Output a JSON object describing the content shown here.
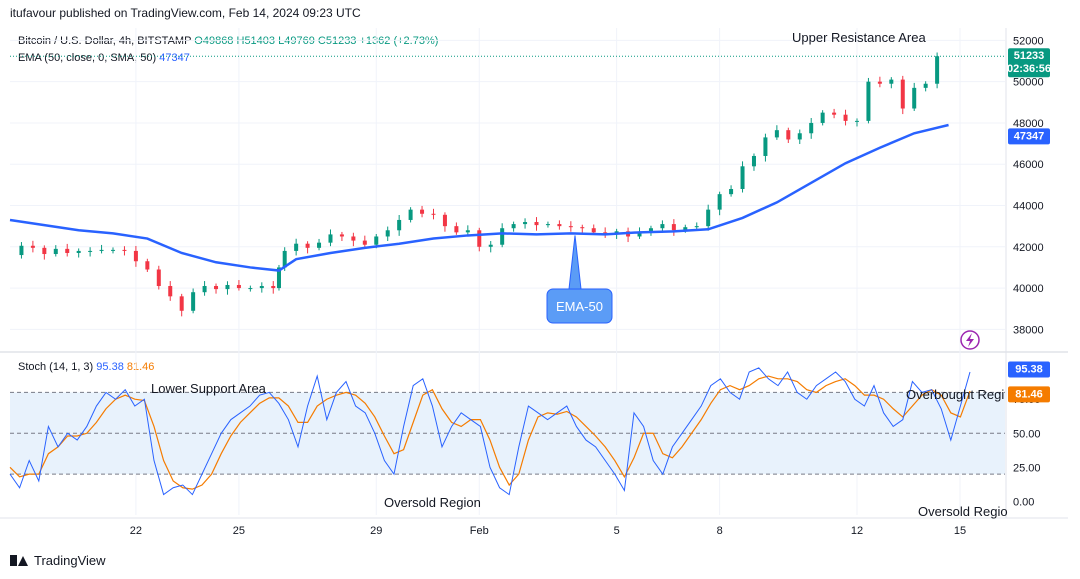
{
  "header": {
    "caption": "itufavour published on TradingView.com, Feb 14, 2024 09:23 UTC",
    "symbol_label": "Bitcoin / U.S. Dollar, 4h, BITSTAMP",
    "ohlc": {
      "o": "O49868",
      "h": "H51403",
      "l": "L49769",
      "c": "C51233",
      "chg": "+1362 (+2.73%)"
    },
    "ema_label": "EMA (50, close, 0, SMA, 50)",
    "ema_value": "47347"
  },
  "price_badge": {
    "price": "51233",
    "countdown": "02:36:56"
  },
  "ema_badge": "47347",
  "stoch": {
    "label": "Stoch (14, 1, 3)",
    "k": "95.38",
    "d": "81.46"
  },
  "annotations": {
    "upper": "Upper Resistance Area",
    "lower": "Lower Support Area",
    "oversold1": "Oversold Region",
    "oversold2": "Oversold Regio",
    "overbought": "Overbought Regi",
    "ema_callout": "EMA-50"
  },
  "brand": "TradingView",
  "colors": {
    "up": "#089981",
    "down": "#f23645",
    "ema": "#2962ff",
    "k": "#2962ff",
    "d": "#f57c00",
    "band": "#e8f2fc"
  },
  "chart_data": [
    {
      "type": "candlestick",
      "title": "",
      "y_ticks": [
        38000,
        40000,
        42000,
        44000,
        46000,
        48000,
        50000,
        52000
      ],
      "ylim": [
        37000,
        52600
      ],
      "x_ticks": [
        {
          "label": "22",
          "i": 22
        },
        {
          "label": "25",
          "i": 40
        },
        {
          "label": "29",
          "i": 64
        },
        {
          "label": "Feb",
          "i": 82
        },
        {
          "label": "5",
          "i": 106
        },
        {
          "label": "8",
          "i": 124
        },
        {
          "label": "12",
          "i": 148
        },
        {
          "label": "15",
          "i": 166
        }
      ],
      "series": [
        {
          "name": "EMA (50, close, 0, SMA, 50)",
          "points": [
            [
              0,
              43300
            ],
            [
              6,
              43050
            ],
            [
              12,
              42800
            ],
            [
              18,
              42650
            ],
            [
              24,
              42400
            ],
            [
              30,
              41700
            ],
            [
              36,
              41250
            ],
            [
              42,
              41000
            ],
            [
              47,
              40850
            ],
            [
              50,
              41400
            ],
            [
              56,
              41700
            ],
            [
              62,
              41950
            ],
            [
              68,
              42150
            ],
            [
              74,
              42400
            ],
            [
              80,
              42550
            ],
            [
              86,
              42650
            ],
            [
              92,
              42600
            ],
            [
              98,
              42650
            ],
            [
              104,
              42600
            ],
            [
              110,
              42700
            ],
            [
              116,
              42750
            ],
            [
              122,
              42850
            ],
            [
              128,
              43400
            ],
            [
              134,
              44150
            ],
            [
              140,
              45100
            ],
            [
              146,
              46050
            ],
            [
              152,
              46800
            ],
            [
              158,
              47500
            ],
            [
              164,
              47900
            ]
          ]
        },
        {
          "name": "BTC/USD 4h closes",
          "points": [
            [
              0,
              41600
            ],
            [
              2,
              42050
            ],
            [
              4,
              41950
            ],
            [
              6,
              41650
            ],
            [
              8,
              41900
            ],
            [
              10,
              41700
            ],
            [
              12,
              41800
            ],
            [
              14,
              41800
            ],
            [
              16,
              41850
            ],
            [
              18,
              41850
            ],
            [
              20,
              41800
            ],
            [
              22,
              41300
            ],
            [
              24,
              40900
            ],
            [
              26,
              40100
            ],
            [
              28,
              39600
            ],
            [
              30,
              38900
            ],
            [
              32,
              39800
            ],
            [
              34,
              40100
            ],
            [
              36,
              39950
            ],
            [
              38,
              40150
            ],
            [
              40,
              40000
            ],
            [
              42,
              40000
            ],
            [
              44,
              40100
            ],
            [
              46,
              40000
            ],
            [
              47,
              41000
            ],
            [
              48,
              41800
            ],
            [
              50,
              42150
            ],
            [
              52,
              41950
            ],
            [
              54,
              42200
            ],
            [
              56,
              42600
            ],
            [
              58,
              42500
            ],
            [
              60,
              42300
            ],
            [
              62,
              42100
            ],
            [
              64,
              42500
            ],
            [
              66,
              42800
            ],
            [
              68,
              43300
            ],
            [
              70,
              43800
            ],
            [
              72,
              43600
            ],
            [
              74,
              43550
            ],
            [
              76,
              43000
            ],
            [
              78,
              42700
            ],
            [
              80,
              42800
            ],
            [
              82,
              42000
            ],
            [
              84,
              42100
            ],
            [
              86,
              42900
            ],
            [
              88,
              43100
            ],
            [
              90,
              43200
            ],
            [
              92,
              43050
            ],
            [
              94,
              43100
            ],
            [
              96,
              43000
            ],
            [
              98,
              42950
            ],
            [
              100,
              42900
            ],
            [
              102,
              42700
            ],
            [
              104,
              42600
            ],
            [
              106,
              42750
            ],
            [
              108,
              42500
            ],
            [
              110,
              42700
            ],
            [
              112,
              42900
            ],
            [
              114,
              43100
            ],
            [
              116,
              42800
            ],
            [
              118,
              42950
            ],
            [
              120,
              43000
            ],
            [
              122,
              43800
            ],
            [
              124,
              44550
            ],
            [
              126,
              44800
            ],
            [
              128,
              45900
            ],
            [
              130,
              46400
            ],
            [
              132,
              47300
            ],
            [
              134,
              47650
            ],
            [
              136,
              47200
            ],
            [
              138,
              47500
            ],
            [
              140,
              48000
            ],
            [
              142,
              48500
            ],
            [
              144,
              48400
            ],
            [
              146,
              48100
            ],
            [
              148,
              48100
            ],
            [
              150,
              50000
            ],
            [
              152,
              49900
            ],
            [
              154,
              50100
            ],
            [
              156,
              48700
            ],
            [
              158,
              49700
            ],
            [
              160,
              49900
            ],
            [
              162,
              51233
            ]
          ]
        }
      ]
    },
    {
      "type": "line",
      "title": "Stoch (14, 1, 3)",
      "y_ticks": [
        0,
        25,
        50,
        75,
        100
      ],
      "ylim": [
        -10,
        106
      ],
      "bands": [
        {
          "from": 20,
          "to": 80
        }
      ],
      "series": [
        {
          "name": "%K",
          "values": [
            20,
            10,
            30,
            15,
            55,
            40,
            50,
            45,
            55,
            70,
            80,
            75,
            82,
            70,
            75,
            30,
            5,
            10,
            12,
            5,
            20,
            35,
            50,
            60,
            65,
            70,
            78,
            80,
            72,
            60,
            40,
            70,
            92,
            60,
            80,
            88,
            70,
            65,
            50,
            30,
            20,
            55,
            85,
            90,
            70,
            40,
            55,
            65,
            60,
            55,
            25,
            10,
            5,
            40,
            70,
            65,
            60,
            65,
            70,
            55,
            45,
            40,
            30,
            20,
            8,
            65,
            55,
            30,
            20,
            40,
            50,
            60,
            70,
            85,
            90,
            80,
            75,
            95,
            98,
            90,
            85,
            95,
            80,
            75,
            85,
            90,
            95,
            88,
            75,
            70,
            85,
            65,
            55,
            60,
            88,
            80,
            82,
            68,
            45,
            70,
            95
          ]
        },
        {
          "name": "%D",
          "values": [
            25,
            18,
            20,
            20,
            35,
            40,
            48,
            48,
            50,
            58,
            68,
            75,
            78,
            75,
            74,
            55,
            30,
            15,
            10,
            9,
            12,
            20,
            35,
            48,
            58,
            65,
            72,
            76,
            76,
            70,
            58,
            58,
            70,
            75,
            78,
            80,
            78,
            72,
            62,
            48,
            35,
            38,
            58,
            78,
            82,
            68,
            58,
            55,
            60,
            60,
            45,
            25,
            12,
            20,
            45,
            62,
            65,
            64,
            66,
            62,
            55,
            48,
            40,
            30,
            18,
            32,
            50,
            50,
            35,
            32,
            40,
            50,
            60,
            72,
            82,
            85,
            82,
            85,
            90,
            92,
            90,
            90,
            88,
            82,
            80,
            85,
            88,
            90,
            85,
            78,
            78,
            75,
            68,
            62,
            70,
            78,
            82,
            78,
            65,
            62,
            81
          ]
        }
      ]
    }
  ]
}
